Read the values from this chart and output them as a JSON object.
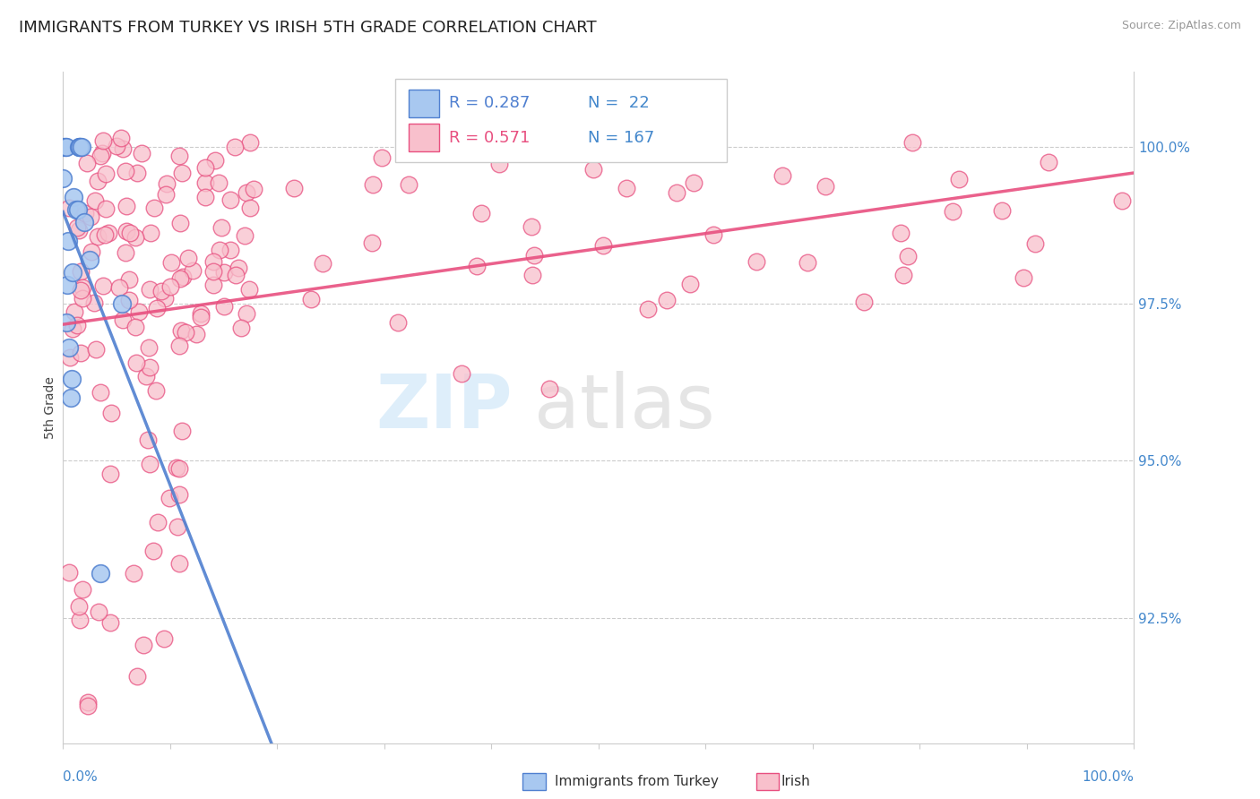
{
  "title": "IMMIGRANTS FROM TURKEY VS IRISH 5TH GRADE CORRELATION CHART",
  "source_text": "Source: ZipAtlas.com",
  "ylabel": "5th Grade",
  "ytick_vals": [
    92.5,
    95.0,
    97.5,
    100.0
  ],
  "ytick_labels": [
    "92.5%",
    "95.0%",
    "97.5%",
    "100.0%"
  ],
  "xrange": [
    0.0,
    1.0
  ],
  "yrange": [
    90.5,
    101.2
  ],
  "color_turkey_fill": "#A8C8F0",
  "color_turkey_edge": "#5080D0",
  "color_irish_fill": "#F8C0CC",
  "color_irish_edge": "#E85080",
  "color_line_turkey": "#5080D0",
  "color_line_irish": "#E85080",
  "legend_r1": "R = 0.287",
  "legend_n1": "N =  22",
  "legend_r2": "R = 0.571",
  "legend_n2": "N = 167",
  "legend_color_r1": "#5080D0",
  "legend_color_r2": "#E85080",
  "legend_color_n": "#4488CC",
  "legend_label_turkey": "Immigrants from Turkey",
  "legend_label_irish": "Irish",
  "watermark_zip_color": "#C8E4F8",
  "watermark_atlas_color": "#D0D0D0",
  "grid_color": "#CCCCCC",
  "title_fontsize": 13,
  "source_fontsize": 9,
  "tick_fontsize": 11,
  "ylabel_fontsize": 10
}
